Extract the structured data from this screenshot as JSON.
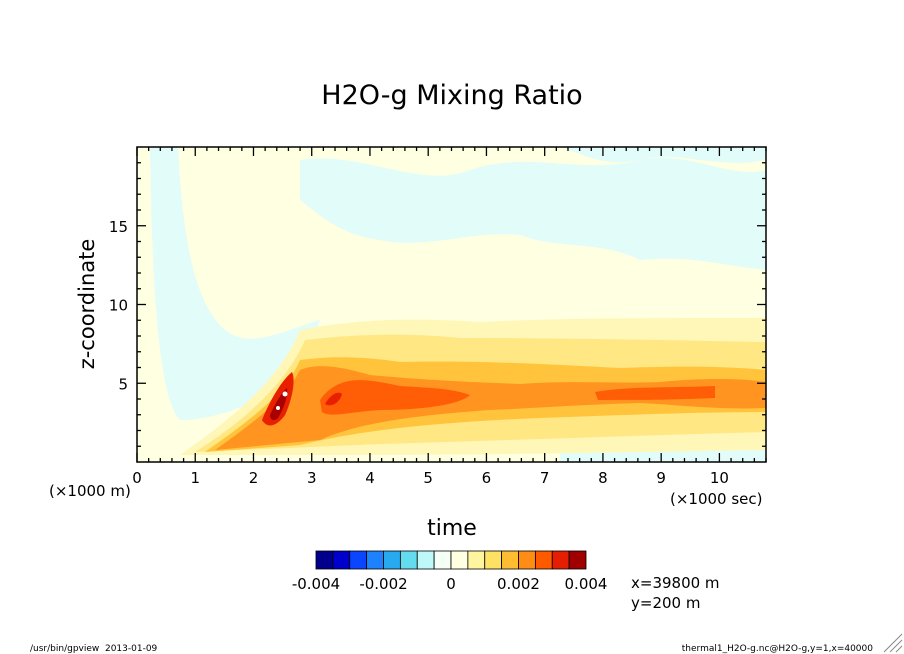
{
  "chart_data": {
    "type": "heatmap",
    "title": "H2O-g Mixing Ratio",
    "xlabel": "time",
    "ylabel": "z-coordinate",
    "x_scale_note": "(×1000 sec)",
    "y_scale_note": "(×1000 m)",
    "x_ticks": [
      0,
      1,
      2,
      3,
      4,
      5,
      6,
      7,
      8,
      9,
      10
    ],
    "y_ticks": [
      5,
      10,
      15
    ],
    "xlim": [
      0,
      10.8
    ],
    "ylim": [
      0,
      20
    ],
    "colorbar": {
      "tick_labels": [
        "-0.004",
        "-0.002",
        "0",
        "0.002",
        "0.004"
      ],
      "range": [
        -0.004,
        0.004
      ],
      "colors": [
        "#00008c",
        "#0000cd",
        "#0a46ff",
        "#1e82ff",
        "#28aaf0",
        "#64dcf0",
        "#bef8f8",
        "#f5fff5",
        "#ffffe1",
        "#fff5a0",
        "#ffe164",
        "#ffbe32",
        "#ff8c14",
        "#ff5a00",
        "#e61e00",
        "#a00000"
      ]
    },
    "annotation": [
      "x=39800 m",
      "y=200 m"
    ],
    "footer_left": "/usr/bin/gpview  2013-01-09",
    "footer_right": "thermal1_H2O-g.nc@H2O-g,y=1,x=40000"
  }
}
